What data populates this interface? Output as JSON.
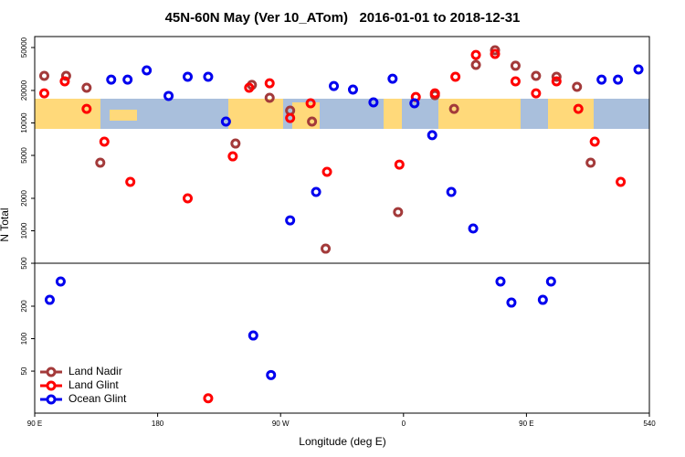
{
  "chart_data": {
    "type": "scatter",
    "title": "45N-60N May (Ver 10_ATom)   2016-01-01 to 2018-12-31",
    "xlabel": "Longitude (deg E)",
    "ylabel": "N Total",
    "xlim": [
      90,
      540
    ],
    "ylim": [
      20.4,
      63200
    ],
    "log_y": true,
    "hlines": [
      500
    ],
    "legend": "lower left",
    "xticks": [
      {
        "value": 90,
        "label": "90 E"
      },
      180,
      {
        "value": 270,
        "label": "90 W"
      },
      {
        "value": 360,
        "label": "0"
      },
      {
        "value": 450,
        "label": "90 E"
      },
      540
    ],
    "yticks": [
      50,
      100,
      200,
      500,
      1000,
      2000,
      5000,
      10000,
      20000,
      50000
    ],
    "series": [
      {
        "name": "Land Nadir",
        "color": "#a33a3a",
        "x": [
          97,
          113,
          128,
          138,
          237,
          249,
          262,
          277,
          293,
          303,
          356,
          383,
          397,
          413,
          427,
          442,
          457,
          472,
          487,
          497
        ],
        "values": [
          27300,
          27300,
          21200,
          4280,
          6440,
          22500,
          17100,
          13000,
          10300,
          683,
          1490,
          18100,
          13500,
          34500,
          47200,
          33900,
          27300,
          26800,
          21600,
          4280
        ]
      },
      {
        "name": "Land Glint",
        "color": "#ff0000",
        "x": [
          97,
          112,
          128,
          141,
          160,
          202,
          217,
          235,
          247,
          262,
          277,
          292,
          304,
          357,
          369,
          383,
          398,
          413,
          427,
          442,
          457,
          472,
          488,
          500,
          519
        ],
        "values": [
          18800,
          24300,
          13500,
          6700,
          2840,
          2000,
          28,
          4900,
          21200,
          23300,
          11100,
          15200,
          3520,
          4110,
          17400,
          18800,
          26800,
          42700,
          43600,
          24300,
          18800,
          24300,
          13500,
          6700,
          2840
        ]
      },
      {
        "name": "Ocean Glint",
        "color": "#0000ee",
        "x": [
          101,
          109,
          146,
          158,
          172,
          188,
          202,
          217,
          230,
          250,
          263,
          277,
          296,
          309,
          323,
          338,
          352,
          368,
          381,
          395,
          411,
          431,
          439,
          462,
          468,
          505,
          517,
          532
        ],
        "values": [
          229,
          339,
          25200,
          25200,
          30700,
          17800,
          26800,
          26800,
          10300,
          107,
          46,
          1250,
          2290,
          22000,
          20400,
          15500,
          25700,
          15200,
          7700,
          2290,
          1050,
          339,
          216,
          229,
          339,
          25200,
          25200,
          31300
        ]
      }
    ]
  }
}
